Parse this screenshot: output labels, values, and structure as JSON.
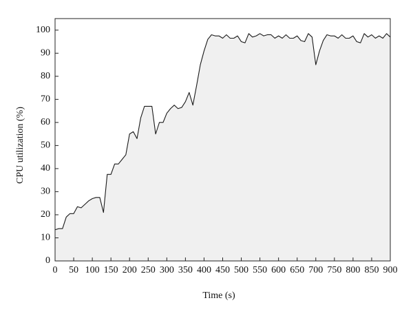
{
  "chart_data": {
    "type": "area",
    "x_label": "Time (s)",
    "y_label": "CPU utilization (%)",
    "x": [
      0,
      10,
      20,
      30,
      40,
      50,
      60,
      70,
      80,
      90,
      100,
      110,
      120,
      130,
      140,
      150,
      160,
      170,
      180,
      190,
      200,
      210,
      220,
      230,
      240,
      250,
      260,
      270,
      280,
      290,
      300,
      310,
      320,
      330,
      340,
      350,
      360,
      370,
      380,
      390,
      400,
      410,
      420,
      430,
      440,
      450,
      460,
      470,
      480,
      490,
      500,
      510,
      520,
      530,
      540,
      550,
      560,
      570,
      580,
      590,
      600,
      610,
      620,
      630,
      640,
      650,
      660,
      670,
      680,
      690,
      700,
      710,
      720,
      730,
      740,
      750,
      760,
      770,
      780,
      790,
      800,
      810,
      820,
      830,
      840,
      850,
      860,
      870,
      880,
      890,
      900
    ],
    "values": [
      13.5,
      14,
      14,
      19,
      20.5,
      20.5,
      23.5,
      23,
      24.5,
      26,
      27,
      27.5,
      27.5,
      21,
      37.5,
      37.5,
      42,
      42,
      44,
      46,
      55,
      56,
      53,
      62,
      67,
      67,
      67,
      55,
      60,
      60,
      64,
      66,
      67.5,
      66,
      66.5,
      69,
      73,
      67.5,
      76,
      85,
      91,
      96,
      98,
      97.5,
      97.5,
      96.5,
      98,
      96.5,
      96.5,
      97.5,
      95,
      94.5,
      98.5,
      97,
      97.5,
      98.5,
      97.5,
      98,
      98,
      96.5,
      97.5,
      96.5,
      98,
      96.5,
      96.5,
      97.5,
      95.5,
      95,
      98.5,
      97,
      85,
      91,
      95.5,
      98,
      97.5,
      97.5,
      96.5,
      98,
      96.5,
      96.5,
      97.5,
      95,
      94.5,
      98.5,
      97,
      98,
      96.5,
      97.5,
      96.5,
      98.5,
      97
    ],
    "color": "#1a1a1a",
    "fill_color": "#f0f0f0",
    "xlim": [
      0,
      900
    ],
    "xticks": [
      0,
      50,
      100,
      150,
      200,
      250,
      300,
      350,
      400,
      450,
      500,
      550,
      600,
      650,
      700,
      750,
      800,
      850,
      900
    ],
    "ylim": [
      0,
      105
    ],
    "yticks": [
      0,
      10,
      20,
      30,
      40,
      50,
      60,
      70,
      80,
      90,
      100
    ]
  }
}
